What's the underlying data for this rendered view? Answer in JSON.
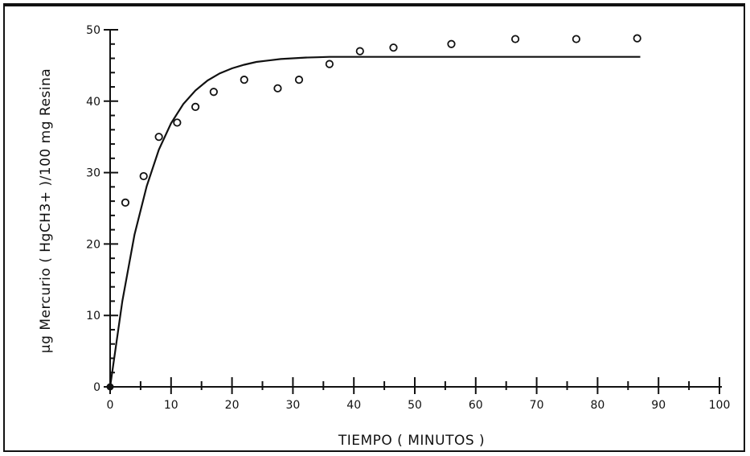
{
  "chart_data": {
    "type": "scatter",
    "title": "",
    "xlabel": "TIEMPO ( MINUTOS )",
    "ylabel": "µg Mercurio ( HgCH3+ )/100 mg Resina",
    "xlim": [
      0,
      100
    ],
    "ylim": [
      0,
      50
    ],
    "x_ticks": [
      0,
      10,
      20,
      30,
      40,
      50,
      60,
      70,
      80,
      90,
      100
    ],
    "y_ticks": [
      0,
      10,
      20,
      30,
      40,
      50
    ],
    "grid": false,
    "legend": "none",
    "series": [
      {
        "type": "scatter",
        "marker": "open-circle",
        "x": [
          2.5,
          5.5,
          8,
          11,
          14,
          17,
          22,
          27.5,
          31,
          36,
          41,
          46.5,
          56,
          66.5,
          76.5,
          86.5
        ],
        "y": [
          25.8,
          29.5,
          35,
          37,
          39.2,
          41.3,
          43,
          41.8,
          43,
          45.2,
          47,
          47.5,
          48,
          48.7,
          48.7,
          48.8
        ]
      },
      {
        "type": "line",
        "x": [
          0,
          2,
          4,
          6,
          8,
          10,
          12,
          14,
          16,
          18,
          20,
          22,
          24,
          26,
          28,
          30,
          32,
          34,
          36,
          38,
          40,
          45,
          50,
          60,
          70,
          80,
          87
        ],
        "y": [
          0,
          12.0,
          21.3,
          28.1,
          33.2,
          36.9,
          39.6,
          41.5,
          42.9,
          43.9,
          44.6,
          45.1,
          45.5,
          45.7,
          45.9,
          46.0,
          46.1,
          46.15,
          46.2,
          46.2,
          46.2,
          46.2,
          46.2,
          46.2,
          46.2,
          46.2,
          46.2
        ]
      }
    ]
  }
}
